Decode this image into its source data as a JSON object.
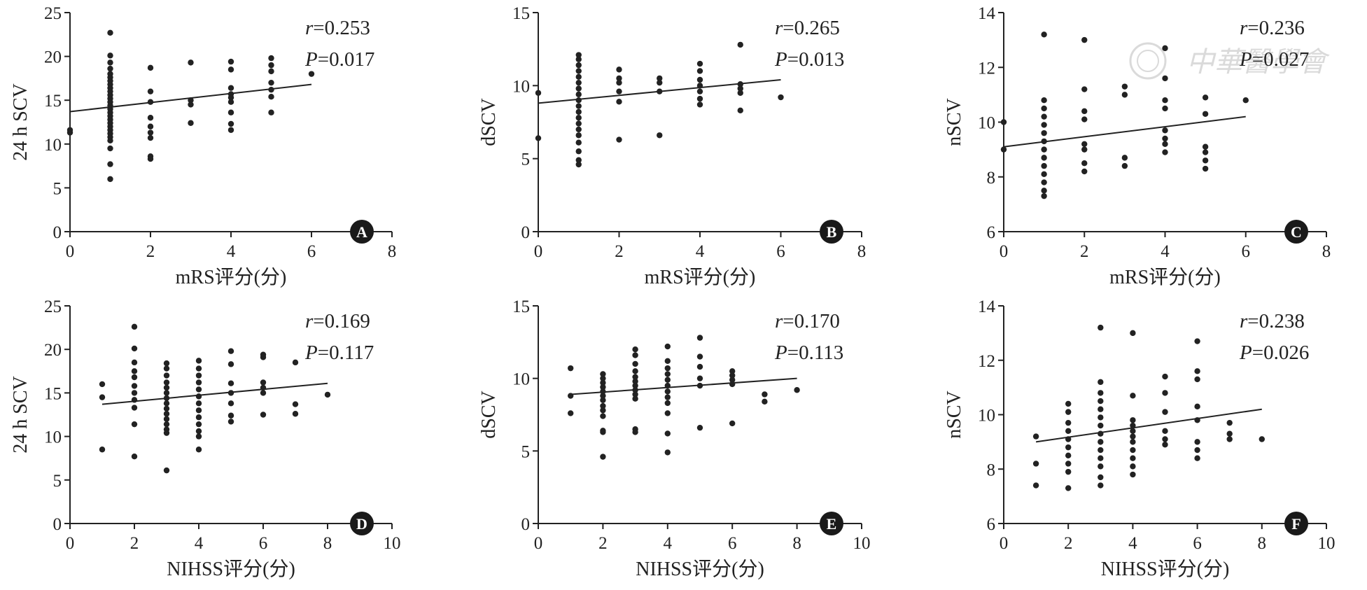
{
  "figure": {
    "watermark": "中華醫學會",
    "colors": {
      "ink": "#222222",
      "watermark": "#d6d6d6",
      "background": "#ffffff"
    }
  },
  "chart_data": [
    {
      "id": "A",
      "type": "scatter",
      "panel_label": "A",
      "xlabel": "mRS评分(分)",
      "ylabel": "24 h SCV",
      "xlim": [
        0,
        8
      ],
      "ylim": [
        0,
        25
      ],
      "xticks": [
        0,
        2,
        4,
        6,
        8
      ],
      "yticks": [
        0,
        5,
        10,
        15,
        20,
        25
      ],
      "stat_r_prefix": "r",
      "stat_r_value": "=0.253",
      "stat_p_prefix": "P",
      "stat_p_value": "=0.017",
      "fit": {
        "x": [
          0,
          6
        ],
        "y": [
          13.7,
          16.8
        ]
      },
      "points": [
        [
          0,
          11.3
        ],
        [
          0,
          11.6
        ],
        [
          1,
          22.7
        ],
        [
          1,
          20.1
        ],
        [
          1,
          19.3
        ],
        [
          1,
          18.6
        ],
        [
          1,
          18.0
        ],
        [
          1,
          17.6
        ],
        [
          1,
          17.2
        ],
        [
          1,
          16.8
        ],
        [
          1,
          16.4
        ],
        [
          1,
          16.0
        ],
        [
          1,
          15.6
        ],
        [
          1,
          15.2
        ],
        [
          1,
          14.8
        ],
        [
          1,
          14.4
        ],
        [
          1,
          14.0
        ],
        [
          1,
          13.6
        ],
        [
          1,
          13.2
        ],
        [
          1,
          12.8
        ],
        [
          1,
          12.4
        ],
        [
          1,
          12.0
        ],
        [
          1,
          11.6
        ],
        [
          1,
          11.2
        ],
        [
          1,
          10.8
        ],
        [
          1,
          10.4
        ],
        [
          1,
          9.5
        ],
        [
          1,
          7.7
        ],
        [
          1,
          6.0
        ],
        [
          2,
          18.7
        ],
        [
          2,
          16.0
        ],
        [
          2,
          14.8
        ],
        [
          2,
          13.0
        ],
        [
          2,
          12.0
        ],
        [
          2,
          11.3
        ],
        [
          2,
          10.7
        ],
        [
          2,
          8.6
        ],
        [
          2,
          8.3
        ],
        [
          3,
          19.3
        ],
        [
          3,
          15.0
        ],
        [
          3,
          14.5
        ],
        [
          3,
          12.4
        ],
        [
          4,
          19.4
        ],
        [
          4,
          18.5
        ],
        [
          4,
          16.4
        ],
        [
          4,
          15.7
        ],
        [
          4,
          15.3
        ],
        [
          4,
          14.8
        ],
        [
          4,
          13.6
        ],
        [
          4,
          12.3
        ],
        [
          4,
          11.6
        ],
        [
          5,
          19.8
        ],
        [
          5,
          19.0
        ],
        [
          5,
          18.3
        ],
        [
          5,
          17.0
        ],
        [
          5,
          16.2
        ],
        [
          5,
          15.4
        ],
        [
          5,
          13.6
        ],
        [
          6,
          18.0
        ]
      ]
    },
    {
      "id": "B",
      "type": "scatter",
      "panel_label": "B",
      "xlabel": "mRS评分(分)",
      "ylabel": "dSCV",
      "xlim": [
        0,
        8
      ],
      "ylim": [
        0,
        15
      ],
      "xticks": [
        0,
        2,
        4,
        6,
        8
      ],
      "yticks": [
        0,
        5,
        10,
        15
      ],
      "stat_r_prefix": "r",
      "stat_r_value": "=0.265",
      "stat_p_prefix": "P",
      "stat_p_value": "=0.013",
      "fit": {
        "x": [
          0,
          6
        ],
        "y": [
          8.8,
          10.4
        ]
      },
      "points": [
        [
          0,
          9.5
        ],
        [
          0,
          6.4
        ],
        [
          1,
          12.1
        ],
        [
          1,
          11.8
        ],
        [
          1,
          11.4
        ],
        [
          1,
          11.0
        ],
        [
          1,
          10.6
        ],
        [
          1,
          10.2
        ],
        [
          1,
          9.8
        ],
        [
          1,
          9.4
        ],
        [
          1,
          9.0
        ],
        [
          1,
          8.6
        ],
        [
          1,
          8.2
        ],
        [
          1,
          7.8
        ],
        [
          1,
          7.4
        ],
        [
          1,
          7.0
        ],
        [
          1,
          6.6
        ],
        [
          1,
          6.1
        ],
        [
          1,
          5.5
        ],
        [
          1,
          4.9
        ],
        [
          1,
          4.6
        ],
        [
          2,
          11.1
        ],
        [
          2,
          10.5
        ],
        [
          2,
          10.2
        ],
        [
          2,
          9.6
        ],
        [
          2,
          8.9
        ],
        [
          2,
          6.3
        ],
        [
          3,
          10.5
        ],
        [
          3,
          10.2
        ],
        [
          3,
          9.6
        ],
        [
          3,
          6.6
        ],
        [
          4,
          11.5
        ],
        [
          4,
          11.0
        ],
        [
          4,
          10.4
        ],
        [
          4,
          10.0
        ],
        [
          4,
          9.6
        ],
        [
          4,
          9.1
        ],
        [
          4,
          8.7
        ],
        [
          5,
          12.8
        ],
        [
          5,
          10.1
        ],
        [
          5,
          9.8
        ],
        [
          5,
          9.5
        ],
        [
          5,
          8.3
        ],
        [
          6,
          9.2
        ]
      ]
    },
    {
      "id": "C",
      "type": "scatter",
      "panel_label": "C",
      "xlabel": "mRS评分(分)",
      "ylabel": "nSCV",
      "xlim": [
        0,
        8
      ],
      "ylim": [
        6,
        14
      ],
      "xticks": [
        0,
        2,
        4,
        6,
        8
      ],
      "yticks": [
        6,
        8,
        10,
        12,
        14
      ],
      "stat_r_prefix": "r",
      "stat_r_value": "=0.236",
      "stat_p_prefix": "P",
      "stat_p_value": "=0.027",
      "fit": {
        "x": [
          0,
          6
        ],
        "y": [
          9.1,
          10.2
        ]
      },
      "points": [
        [
          0,
          10.0
        ],
        [
          0,
          9.0
        ],
        [
          1,
          13.2
        ],
        [
          1,
          10.8
        ],
        [
          1,
          10.5
        ],
        [
          1,
          10.2
        ],
        [
          1,
          9.9
        ],
        [
          1,
          9.6
        ],
        [
          1,
          9.3
        ],
        [
          1,
          9.0
        ],
        [
          1,
          8.7
        ],
        [
          1,
          8.4
        ],
        [
          1,
          8.1
        ],
        [
          1,
          7.8
        ],
        [
          1,
          7.5
        ],
        [
          1,
          7.3
        ],
        [
          2,
          13.0
        ],
        [
          2,
          11.2
        ],
        [
          2,
          10.4
        ],
        [
          2,
          10.1
        ],
        [
          2,
          9.2
        ],
        [
          2,
          9.0
        ],
        [
          2,
          8.5
        ],
        [
          2,
          8.2
        ],
        [
          3,
          11.3
        ],
        [
          3,
          11.0
        ],
        [
          3,
          8.7
        ],
        [
          3,
          8.4
        ],
        [
          4,
          12.7
        ],
        [
          4,
          11.6
        ],
        [
          4,
          10.8
        ],
        [
          4,
          10.5
        ],
        [
          4,
          9.7
        ],
        [
          4,
          9.4
        ],
        [
          4,
          9.2
        ],
        [
          4,
          8.9
        ],
        [
          5,
          10.9
        ],
        [
          5,
          10.3
        ],
        [
          5,
          9.1
        ],
        [
          5,
          8.9
        ],
        [
          5,
          8.6
        ],
        [
          5,
          8.3
        ],
        [
          6,
          10.8
        ]
      ]
    },
    {
      "id": "D",
      "type": "scatter",
      "panel_label": "D",
      "xlabel": "NIHSS评分(分)",
      "ylabel": "24 h SCV",
      "xlim": [
        0,
        10
      ],
      "ylim": [
        0,
        25
      ],
      "xticks": [
        0,
        2,
        4,
        6,
        8,
        10
      ],
      "yticks": [
        0,
        5,
        10,
        15,
        20,
        25
      ],
      "stat_r_prefix": "r",
      "stat_r_value": "=0.169",
      "stat_p_prefix": "P",
      "stat_p_value": "=0.117",
      "fit": {
        "x": [
          1,
          8
        ],
        "y": [
          13.7,
          16.1
        ]
      },
      "points": [
        [
          1,
          16.0
        ],
        [
          1,
          14.5
        ],
        [
          1,
          8.5
        ],
        [
          2,
          22.6
        ],
        [
          2,
          20.1
        ],
        [
          2,
          18.5
        ],
        [
          2,
          17.5
        ],
        [
          2,
          16.8
        ],
        [
          2,
          15.8
        ],
        [
          2,
          15.0
        ],
        [
          2,
          14.2
        ],
        [
          2,
          13.3
        ],
        [
          2,
          11.4
        ],
        [
          2,
          7.7
        ],
        [
          3,
          18.4
        ],
        [
          3,
          17.8
        ],
        [
          3,
          17.0
        ],
        [
          3,
          16.2
        ],
        [
          3,
          15.6
        ],
        [
          3,
          15.0
        ],
        [
          3,
          14.4
        ],
        [
          3,
          13.8
        ],
        [
          3,
          13.2
        ],
        [
          3,
          12.6
        ],
        [
          3,
          12.0
        ],
        [
          3,
          11.4
        ],
        [
          3,
          10.8
        ],
        [
          3,
          10.4
        ],
        [
          3,
          6.1
        ],
        [
          4,
          18.7
        ],
        [
          4,
          17.8
        ],
        [
          4,
          17.0
        ],
        [
          4,
          16.2
        ],
        [
          4,
          15.4
        ],
        [
          4,
          14.6
        ],
        [
          4,
          13.8
        ],
        [
          4,
          13.0
        ],
        [
          4,
          12.2
        ],
        [
          4,
          11.4
        ],
        [
          4,
          10.6
        ],
        [
          4,
          10.0
        ],
        [
          4,
          8.5
        ],
        [
          5,
          19.8
        ],
        [
          5,
          18.3
        ],
        [
          5,
          16.1
        ],
        [
          5,
          15.0
        ],
        [
          5,
          13.8
        ],
        [
          5,
          12.4
        ],
        [
          5,
          11.7
        ],
        [
          6,
          19.4
        ],
        [
          6,
          19.1
        ],
        [
          6,
          16.2
        ],
        [
          6,
          15.6
        ],
        [
          6,
          15.0
        ],
        [
          6,
          12.5
        ],
        [
          7,
          18.5
        ],
        [
          7,
          13.7
        ],
        [
          7,
          12.6
        ],
        [
          8,
          14.8
        ]
      ]
    },
    {
      "id": "E",
      "type": "scatter",
      "panel_label": "E",
      "xlabel": "NIHSS评分(分)",
      "ylabel": "dSCV",
      "xlim": [
        0,
        10
      ],
      "ylim": [
        0,
        15
      ],
      "xticks": [
        0,
        2,
        4,
        6,
        8,
        10
      ],
      "yticks": [
        0,
        5,
        10,
        15
      ],
      "stat_r_prefix": "r",
      "stat_r_value": "=0.170",
      "stat_p_prefix": "P",
      "stat_p_value": "=0.113",
      "fit": {
        "x": [
          1,
          8
        ],
        "y": [
          8.9,
          10.0
        ]
      },
      "points": [
        [
          1,
          10.7
        ],
        [
          1,
          8.8
        ],
        [
          1,
          7.6
        ],
        [
          2,
          10.3
        ],
        [
          2,
          10.0
        ],
        [
          2,
          9.7
        ],
        [
          2,
          9.4
        ],
        [
          2,
          9.1
        ],
        [
          2,
          8.8
        ],
        [
          2,
          8.5
        ],
        [
          2,
          8.1
        ],
        [
          2,
          7.8
        ],
        [
          2,
          7.4
        ],
        [
          2,
          6.4
        ],
        [
          2,
          6.3
        ],
        [
          2,
          4.6
        ],
        [
          3,
          12.0
        ],
        [
          3,
          11.6
        ],
        [
          3,
          11.0
        ],
        [
          3,
          10.5
        ],
        [
          3,
          10.1
        ],
        [
          3,
          9.8
        ],
        [
          3,
          9.5
        ],
        [
          3,
          9.2
        ],
        [
          3,
          8.9
        ],
        [
          3,
          8.6
        ],
        [
          3,
          6.5
        ],
        [
          3,
          6.3
        ],
        [
          4,
          12.2
        ],
        [
          4,
          11.2
        ],
        [
          4,
          10.7
        ],
        [
          4,
          10.3
        ],
        [
          4,
          9.9
        ],
        [
          4,
          9.5
        ],
        [
          4,
          9.1
        ],
        [
          4,
          8.7
        ],
        [
          4,
          8.3
        ],
        [
          4,
          7.6
        ],
        [
          4,
          6.2
        ],
        [
          4,
          4.9
        ],
        [
          5,
          12.8
        ],
        [
          5,
          11.5
        ],
        [
          5,
          10.8
        ],
        [
          5,
          10.0
        ],
        [
          5,
          9.5
        ],
        [
          5,
          6.6
        ],
        [
          6,
          10.5
        ],
        [
          6,
          10.2
        ],
        [
          6,
          9.9
        ],
        [
          6,
          9.6
        ],
        [
          6,
          6.9
        ],
        [
          7,
          8.9
        ],
        [
          7,
          8.4
        ],
        [
          8,
          9.2
        ]
      ]
    },
    {
      "id": "F",
      "type": "scatter",
      "panel_label": "F",
      "xlabel": "NIHSS评分(分)",
      "ylabel": "nSCV",
      "xlim": [
        0,
        10
      ],
      "ylim": [
        6,
        14
      ],
      "xticks": [
        0,
        2,
        4,
        6,
        8,
        10
      ],
      "yticks": [
        6,
        8,
        10,
        12,
        14
      ],
      "stat_r_prefix": "r",
      "stat_r_value": "=0.238",
      "stat_p_prefix": "P",
      "stat_p_value": "=0.026",
      "fit": {
        "x": [
          1,
          8
        ],
        "y": [
          9.0,
          10.2
        ]
      },
      "points": [
        [
          1,
          9.2
        ],
        [
          1,
          8.2
        ],
        [
          1,
          7.4
        ],
        [
          2,
          10.4
        ],
        [
          2,
          10.1
        ],
        [
          2,
          9.7
        ],
        [
          2,
          9.4
        ],
        [
          2,
          9.1
        ],
        [
          2,
          8.8
        ],
        [
          2,
          8.5
        ],
        [
          2,
          8.2
        ],
        [
          2,
          7.9
        ],
        [
          2,
          7.3
        ],
        [
          3,
          13.2
        ],
        [
          3,
          11.2
        ],
        [
          3,
          10.8
        ],
        [
          3,
          10.5
        ],
        [
          3,
          10.2
        ],
        [
          3,
          9.9
        ],
        [
          3,
          9.6
        ],
        [
          3,
          9.3
        ],
        [
          3,
          9.0
        ],
        [
          3,
          8.7
        ],
        [
          3,
          8.4
        ],
        [
          3,
          8.1
        ],
        [
          3,
          7.7
        ],
        [
          3,
          7.4
        ],
        [
          4,
          13.0
        ],
        [
          4,
          10.7
        ],
        [
          4,
          9.8
        ],
        [
          4,
          9.6
        ],
        [
          4,
          9.4
        ],
        [
          4,
          9.2
        ],
        [
          4,
          9.0
        ],
        [
          4,
          8.7
        ],
        [
          4,
          8.4
        ],
        [
          4,
          8.1
        ],
        [
          4,
          7.8
        ],
        [
          5,
          11.4
        ],
        [
          5,
          10.8
        ],
        [
          5,
          10.1
        ],
        [
          5,
          9.4
        ],
        [
          5,
          9.1
        ],
        [
          5,
          8.9
        ],
        [
          6,
          12.7
        ],
        [
          6,
          11.6
        ],
        [
          6,
          11.3
        ],
        [
          6,
          10.3
        ],
        [
          6,
          9.8
        ],
        [
          6,
          9.0
        ],
        [
          6,
          8.7
        ],
        [
          6,
          8.4
        ],
        [
          7,
          9.7
        ],
        [
          7,
          9.3
        ],
        [
          7,
          9.1
        ],
        [
          8,
          9.1
        ]
      ]
    }
  ]
}
